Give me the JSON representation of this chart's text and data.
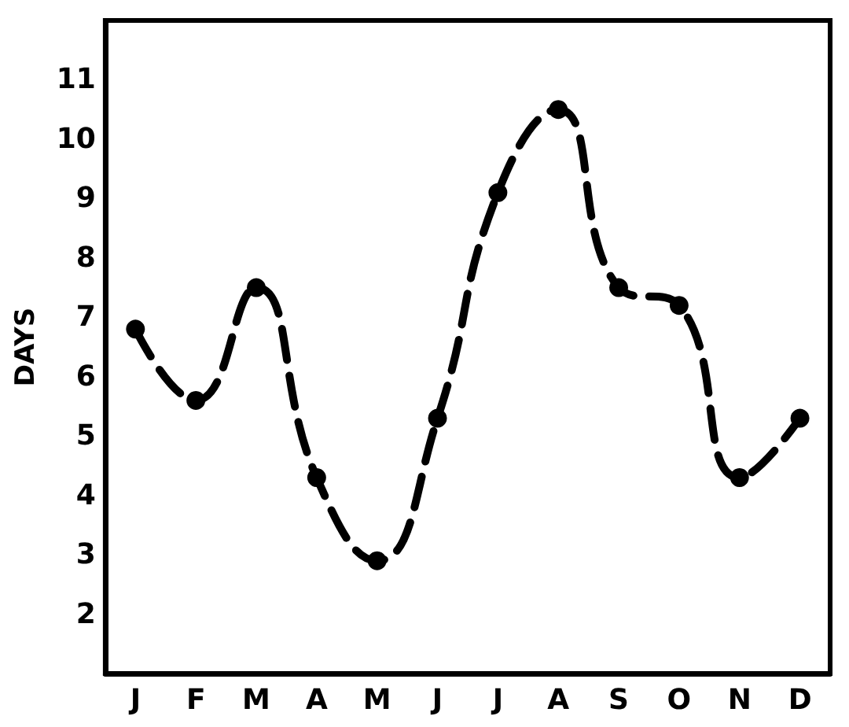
{
  "chart_data": {
    "type": "line",
    "ylabel": "DAYS",
    "categories": [
      "J",
      "F",
      "M",
      "A",
      "M",
      "J",
      "J",
      "A",
      "S",
      "O",
      "N",
      "D"
    ],
    "series": [
      {
        "color": "#000000",
        "values": [
          6.8,
          5.6,
          7.5,
          4.3,
          2.9,
          5.3,
          9.1,
          10.5,
          7.5,
          7.2,
          4.3,
          5.3
        ]
      }
    ],
    "ylim": [
      1,
      12
    ],
    "yticks": [
      2,
      3,
      4,
      5,
      6,
      7,
      8,
      9,
      10,
      11
    ],
    "grid": false,
    "marker": "circle",
    "line_style": "dashed"
  }
}
